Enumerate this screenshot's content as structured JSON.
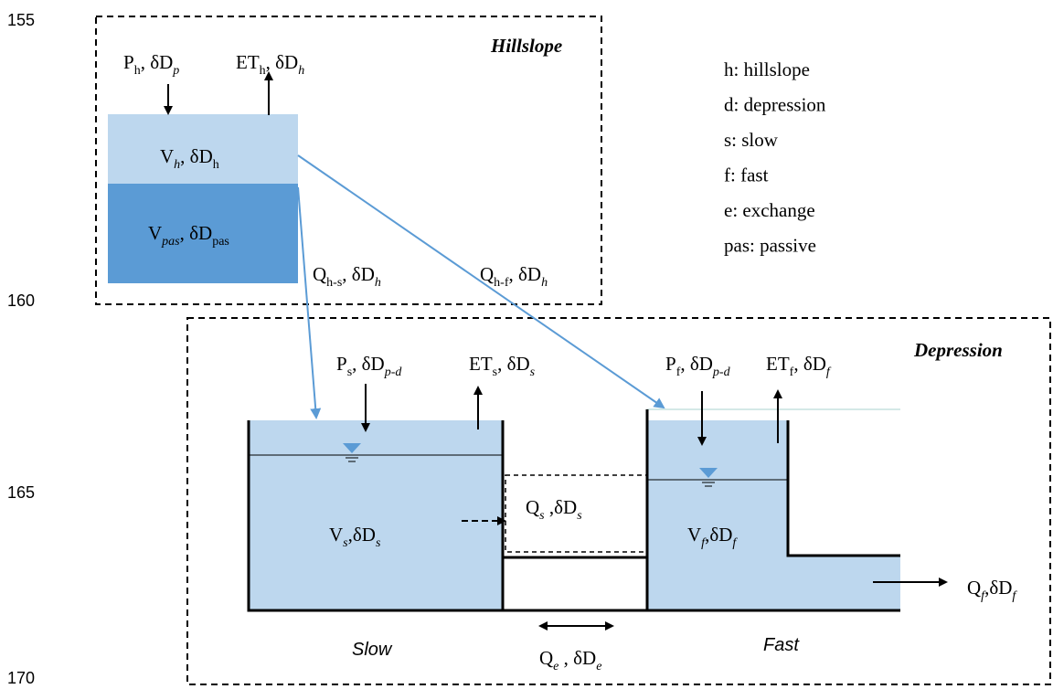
{
  "line_numbers": [
    "155",
    "160",
    "165",
    "170"
  ],
  "hillslope": {
    "title": "Hillslope",
    "precip": [
      "P",
      "h",
      ", δD",
      "p"
    ],
    "et": [
      "ET",
      "h",
      ", δD",
      "h"
    ],
    "active": [
      "V",
      "h",
      ", δD",
      "h"
    ],
    "passive": [
      "V",
      "pas",
      ", δD",
      "pas"
    ],
    "q_slow": [
      "Q",
      "h-s",
      ", δD",
      "h"
    ],
    "q_fast": [
      "Q",
      "h-f",
      ", δD",
      "h"
    ]
  },
  "legend": [
    "h: hillslope",
    "d: depression",
    "s: slow",
    "f: fast",
    "e: exchange",
    "pas: passive"
  ],
  "depression": {
    "title": "Depression",
    "slow_precip": [
      "P",
      "s",
      ", δD",
      "p-d"
    ],
    "slow_et": [
      "ET",
      "s",
      ", δD",
      "s"
    ],
    "slow_store": [
      "V",
      "s",
      ",δD",
      "s"
    ],
    "slow_flow": [
      "Q",
      "s",
      " ,δD",
      "s"
    ],
    "fast_precip": [
      "P",
      "f",
      ", δD",
      "p-d"
    ],
    "fast_et": [
      "ET",
      "f",
      ", δD",
      "f"
    ],
    "fast_store": [
      "V",
      "f",
      ",δD",
      "f"
    ],
    "fast_out": [
      "Q",
      "f",
      ",δD",
      "f"
    ],
    "exchange": [
      "Q",
      "e",
      " , δD",
      "e"
    ],
    "slow_label": "Slow",
    "fast_label": "Fast"
  }
}
